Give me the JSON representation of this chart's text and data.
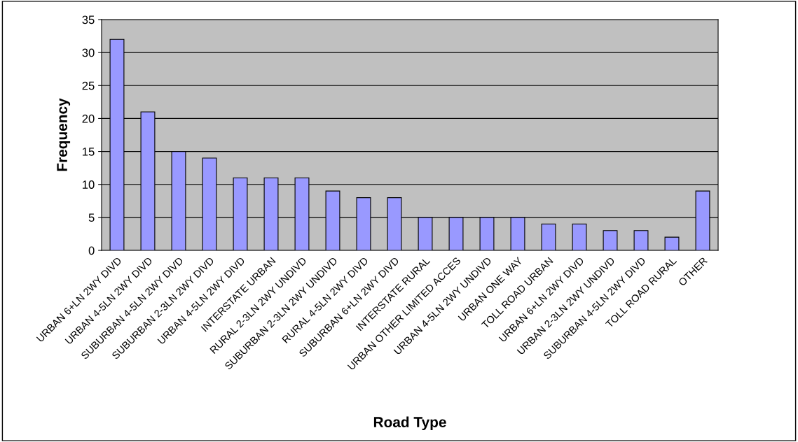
{
  "chart_data": {
    "type": "bar",
    "xlabel": "Road Type",
    "ylabel": "Frequency",
    "categories": [
      "URBAN 6+LN 2WY DIVD",
      "URBAN 4-5LN 2WY DIVD",
      "SUBURBAN 4-5LN 2WY DIVD",
      "SUBURBAN 2-3LN 2WY DIVD",
      "URBAN 4-5LN 2WY DIVD",
      "INTERSTATE URBAN",
      "RURAL 2-3LN 2WY UNDIVD",
      "SUBURBAN 2-3LN 2WY UNDIVD",
      "RURAL 4-5LN 2WY DIVD",
      "SUBURBAN 6+LN 2WY DIVD",
      "INTERSTATE RURAL",
      "URBAN OTHER LIMITED ACCES",
      "URBAN 4-5LN 2WY UNDIVD",
      "URBAN ONE WAY",
      "TOLL ROAD URBAN",
      "URBAN 6+LN 2WY DIVD",
      "URBAN 2-3LN 2WY UNDIVD",
      "SUBURBAN 4-5LN 2WY DIVD",
      "TOLL ROAD RURAL",
      "OTHER"
    ],
    "values": [
      32,
      21,
      15,
      14,
      11,
      11,
      11,
      9,
      8,
      8,
      5,
      5,
      5,
      5,
      4,
      4,
      3,
      3,
      2,
      9
    ],
    "color": "#9999ff",
    "ylim": [
      0,
      35
    ],
    "yticks": [
      0,
      5,
      10,
      15,
      20,
      25,
      30,
      35
    ],
    "grid": "y",
    "legend": false
  }
}
